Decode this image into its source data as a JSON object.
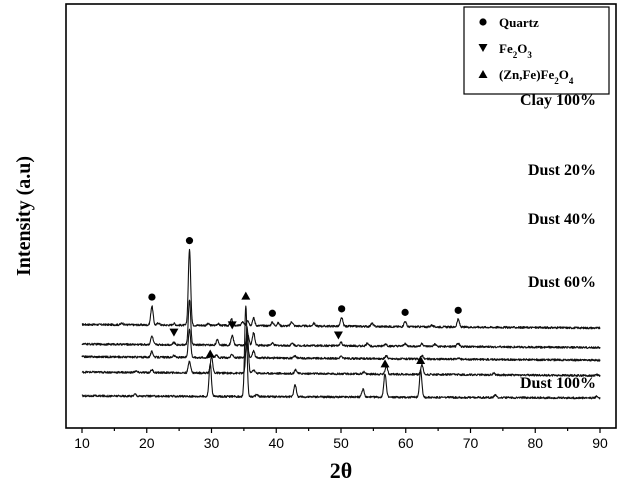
{
  "chart_data": {
    "type": "line",
    "xlabel": "2θ",
    "ylabel": "Intensity (a.u)",
    "xlim": [
      10,
      90
    ],
    "x_ticks": [
      10,
      20,
      30,
      40,
      50,
      60,
      70,
      80,
      90
    ],
    "y_ticks_shown": false,
    "grid": false,
    "legend_placement": "top-right",
    "legend": [
      {
        "marker": "circle",
        "label": "Quartz"
      },
      {
        "marker": "triangle-down",
        "label": "Fe",
        "sub": "2",
        "label2": "O",
        "sub2": "3"
      },
      {
        "marker": "triangle-up",
        "label": "(Zn,Fe)Fe",
        "sub": "2",
        "label2": "O",
        "sub2": "4"
      }
    ],
    "series": [
      {
        "name": "Clay 100%",
        "baseline": 5.0,
        "peaks": [
          [
            16.2,
            0.12
          ],
          [
            20.8,
            1.35
          ],
          [
            21.8,
            0.15
          ],
          [
            24.2,
            0.12
          ],
          [
            26.6,
            5.4
          ],
          [
            29.5,
            0.1
          ],
          [
            31.0,
            0.12
          ],
          [
            33.1,
            0.45
          ],
          [
            34.8,
            0.25
          ],
          [
            35.6,
            0.4
          ],
          [
            36.5,
            0.55
          ],
          [
            39.4,
            0.25
          ],
          [
            40.3,
            0.2
          ],
          [
            42.4,
            0.3
          ],
          [
            45.8,
            0.2
          ],
          [
            50.1,
            0.6
          ],
          [
            54.8,
            0.22
          ],
          [
            59.9,
            0.38
          ],
          [
            64.0,
            0.12
          ],
          [
            68.1,
            0.55
          ]
        ],
        "markers": [
          {
            "x": 20.8,
            "type": "circle"
          },
          {
            "x": 26.6,
            "type": "circle"
          },
          {
            "x": 39.4,
            "type": "circle"
          },
          {
            "x": 50.1,
            "type": "circle"
          },
          {
            "x": 59.9,
            "type": "circle"
          },
          {
            "x": 68.1,
            "type": "circle"
          }
        ]
      },
      {
        "name": "Dust 20%",
        "baseline": 3.6,
        "peaks": [
          [
            20.8,
            0.6
          ],
          [
            24.2,
            0.15
          ],
          [
            26.6,
            3.2
          ],
          [
            30.9,
            0.35
          ],
          [
            33.2,
            0.7
          ],
          [
            35.6,
            0.8
          ],
          [
            36.5,
            0.9
          ],
          [
            39.4,
            0.15
          ],
          [
            42.5,
            0.15
          ],
          [
            50.0,
            0.25
          ],
          [
            54.1,
            0.2
          ],
          [
            56.9,
            0.15
          ],
          [
            59.9,
            0.2
          ],
          [
            62.5,
            0.2
          ],
          [
            64.5,
            0.15
          ],
          [
            68.1,
            0.25
          ]
        ],
        "markers": [
          {
            "x": 24.2,
            "type": "triangle-down"
          },
          {
            "x": 33.2,
            "type": "triangle-down"
          },
          {
            "x": 49.6,
            "type": "triangle-down"
          }
        ]
      },
      {
        "name": "Dust 40%",
        "baseline": 2.7,
        "peaks": [
          [
            20.8,
            0.4
          ],
          [
            24.2,
            0.12
          ],
          [
            26.6,
            2.05
          ],
          [
            30.0,
            0.25
          ],
          [
            30.8,
            0.2
          ],
          [
            33.2,
            0.25
          ],
          [
            35.5,
            1.0
          ],
          [
            36.5,
            0.5
          ],
          [
            42.9,
            0.15
          ],
          [
            50.0,
            0.15
          ],
          [
            57.0,
            0.2
          ],
          [
            62.5,
            0.25
          ],
          [
            68.1,
            0.1
          ]
        ],
        "markers": []
      },
      {
        "name": "Dust 60%",
        "baseline": 1.6,
        "peaks": [
          [
            18.3,
            0.1
          ],
          [
            20.8,
            0.2
          ],
          [
            26.6,
            0.85
          ],
          [
            30.0,
            1.15
          ],
          [
            35.5,
            3.3
          ],
          [
            36.5,
            0.25
          ],
          [
            43.0,
            0.28
          ],
          [
            53.5,
            0.15
          ],
          [
            57.0,
            0.6
          ],
          [
            62.5,
            0.7
          ],
          [
            73.6,
            0.12
          ],
          [
            89.5,
            0.08
          ]
        ],
        "markers": []
      },
      {
        "name": "Dust 100%",
        "baseline": 0.0,
        "peaks": [
          [
            18.2,
            0.15
          ],
          [
            29.8,
            2.35
          ],
          [
            35.3,
            6.5
          ],
          [
            37.0,
            0.15
          ],
          [
            42.9,
            0.9
          ],
          [
            53.4,
            0.55
          ],
          [
            56.8,
            1.7
          ],
          [
            62.3,
            1.95
          ],
          [
            73.8,
            0.18
          ],
          [
            89.5,
            0.12
          ]
        ],
        "markers": [
          {
            "x": 29.8,
            "type": "triangle-up"
          },
          {
            "x": 35.3,
            "type": "triangle-up"
          },
          {
            "x": 56.8,
            "type": "triangle-up"
          },
          {
            "x": 62.3,
            "type": "triangle-up"
          }
        ]
      }
    ]
  }
}
